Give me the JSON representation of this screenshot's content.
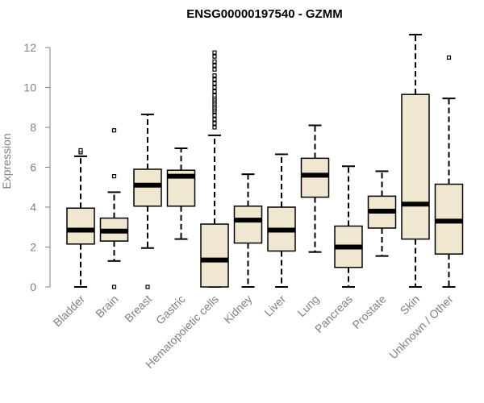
{
  "chart_data": {
    "type": "boxplot",
    "title": "ENSG00000197540 - GZMM",
    "xlabel": "",
    "ylabel": "Expression",
    "ylim": [
      0,
      12.5
    ],
    "yticks": [
      0,
      2,
      4,
      6,
      8,
      10,
      12
    ],
    "box_fill": "#efe7cf",
    "box_stroke": "#000000",
    "axis_color": "#808080",
    "categories": [
      "Bladder",
      "Brain",
      "Breast",
      "Gastric",
      "Hematopoietic cells",
      "Kidney",
      "Liver",
      "Lung",
      "Pancreas",
      "Prostate",
      "Skin",
      "Unknown / Other"
    ],
    "boxes": [
      {
        "min": 0.0,
        "q1": 2.15,
        "median": 2.85,
        "q3": 3.95,
        "max": 6.55,
        "outliers": [
          6.75,
          6.85
        ]
      },
      {
        "min": 1.3,
        "q1": 2.3,
        "median": 2.8,
        "q3": 3.45,
        "max": 4.75,
        "outliers": [
          7.85,
          5.55,
          0.0
        ]
      },
      {
        "min": 1.95,
        "q1": 4.05,
        "median": 5.1,
        "q3": 5.9,
        "max": 8.65,
        "outliers": [
          0.0
        ]
      },
      {
        "min": 2.4,
        "q1": 4.05,
        "median": 5.55,
        "q3": 5.85,
        "max": 6.95,
        "outliers": []
      },
      {
        "min": 0.0,
        "q1": 0.0,
        "median": 1.35,
        "q3": 3.15,
        "max": 7.6,
        "outliers": [
          8.0,
          8.2,
          8.4,
          8.6,
          8.8,
          8.9,
          9.0,
          9.1,
          9.2,
          9.3,
          9.4,
          9.5,
          9.6,
          9.8,
          10.0,
          10.2,
          10.4,
          10.6,
          10.9,
          11.1,
          11.3,
          11.55,
          11.75
        ]
      },
      {
        "min": 0.0,
        "q1": 2.2,
        "median": 3.35,
        "q3": 4.05,
        "max": 5.65,
        "outliers": []
      },
      {
        "min": 0.0,
        "q1": 1.8,
        "median": 2.85,
        "q3": 4.0,
        "max": 6.65,
        "outliers": []
      },
      {
        "min": 1.75,
        "q1": 4.5,
        "median": 5.6,
        "q3": 6.45,
        "max": 8.1,
        "outliers": []
      },
      {
        "min": 0.0,
        "q1": 0.98,
        "median": 2.0,
        "q3": 3.05,
        "max": 6.05,
        "outliers": []
      },
      {
        "min": 1.55,
        "q1": 2.95,
        "median": 3.8,
        "q3": 4.55,
        "max": 5.8,
        "outliers": []
      },
      {
        "min": 0.0,
        "q1": 2.4,
        "median": 4.15,
        "q3": 9.65,
        "max": 12.65,
        "outliers": []
      },
      {
        "min": 0.0,
        "q1": 1.65,
        "median": 3.3,
        "q3": 5.15,
        "max": 9.45,
        "outliers": [
          11.5
        ]
      }
    ]
  }
}
